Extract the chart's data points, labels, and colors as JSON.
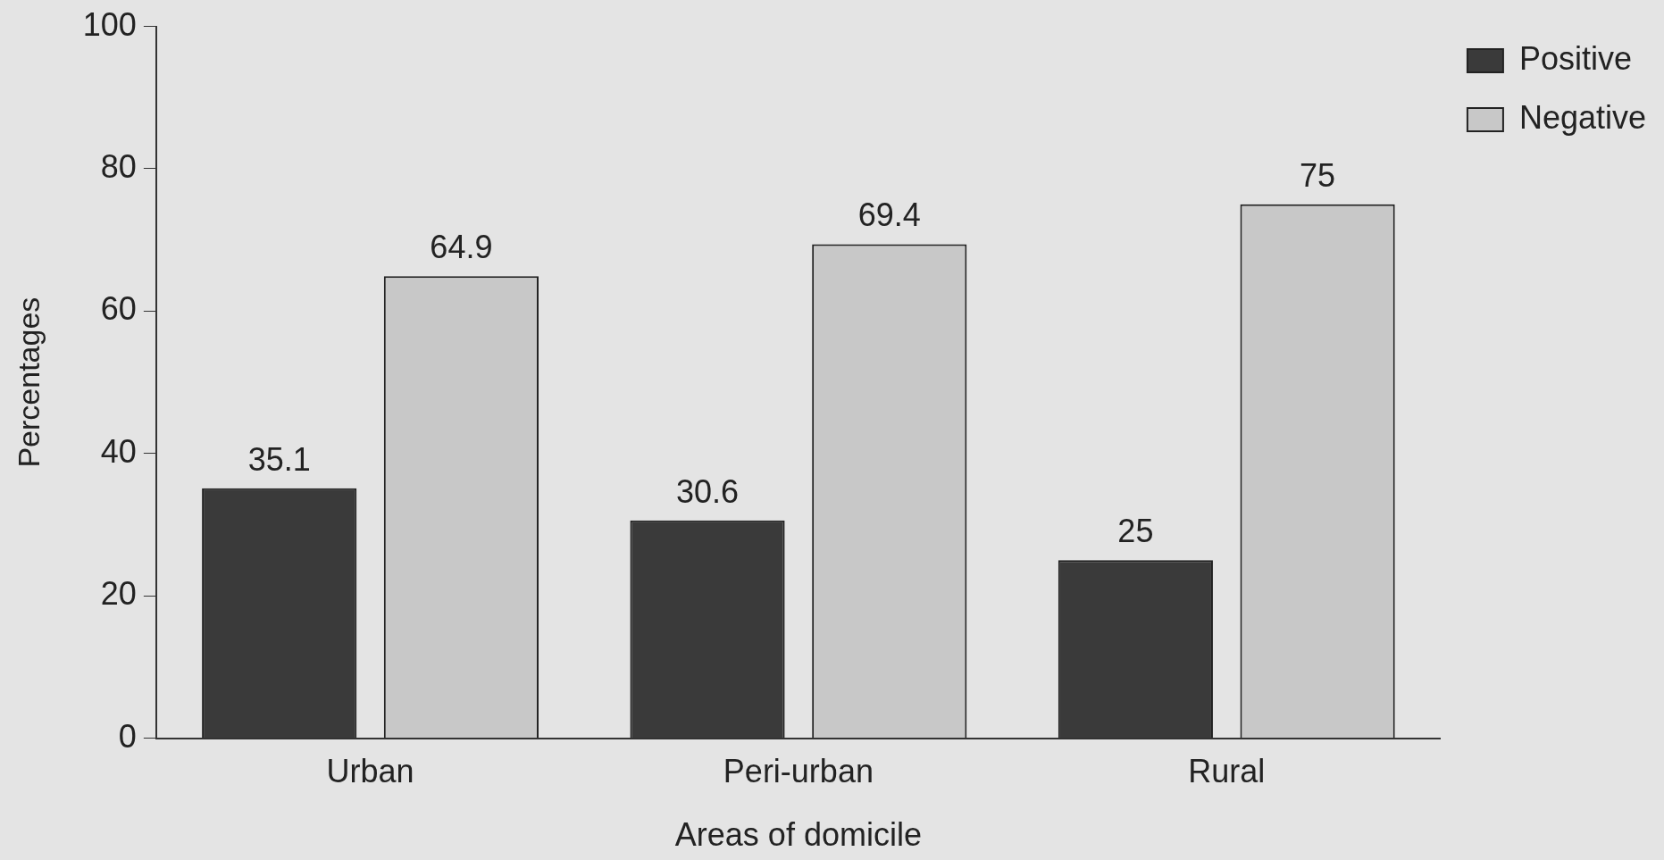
{
  "chart_data": {
    "type": "bar",
    "xlabel": "Areas of domicile",
    "ylabel": "Percentages",
    "categories": [
      "Urban",
      "Peri-urban",
      "Rural"
    ],
    "series": [
      {
        "name": "Positive",
        "color": "#3a3a3a",
        "values": [
          35.1,
          30.6,
          25
        ]
      },
      {
        "name": "Negative",
        "color": "#c8c8c8",
        "values": [
          64.9,
          69.4,
          75
        ]
      }
    ],
    "ylim": [
      0,
      100
    ],
    "yticks": [
      0,
      20,
      40,
      60,
      80,
      100
    ],
    "grid": false,
    "legend": "top right",
    "data_labels": true
  }
}
